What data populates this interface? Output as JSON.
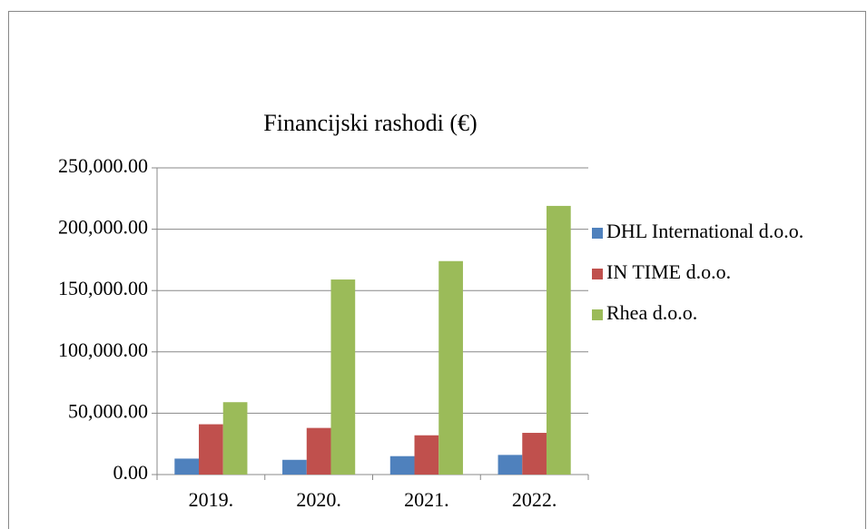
{
  "chart_data": {
    "type": "bar",
    "title": "Financijski rashodi (€)",
    "categories": [
      "2019.",
      "2020.",
      "2021.",
      "2022."
    ],
    "series": [
      {
        "name": "DHL International d.o.o.",
        "color": "#4f81bd",
        "values": [
          13000,
          12000,
          15000,
          16000
        ]
      },
      {
        "name": "IN TIME d.o.o.",
        "color": "#c0504d",
        "values": [
          41000,
          38000,
          32000,
          34000
        ]
      },
      {
        "name": "Rhea d.o.o.",
        "color": "#9bbb59",
        "values": [
          59000,
          159000,
          174000,
          219000
        ]
      }
    ],
    "ylim": [
      0,
      250000
    ],
    "yticks": [
      {
        "value": 0,
        "label": "0.00"
      },
      {
        "value": 50000,
        "label": "50,000.00"
      },
      {
        "value": 100000,
        "label": "100,000.00"
      },
      {
        "value": 150000,
        "label": "150,000.00"
      },
      {
        "value": 200000,
        "label": "200,000.00"
      },
      {
        "value": 250000,
        "label": "250,000.00"
      }
    ],
    "grid": true,
    "legend": "right"
  }
}
